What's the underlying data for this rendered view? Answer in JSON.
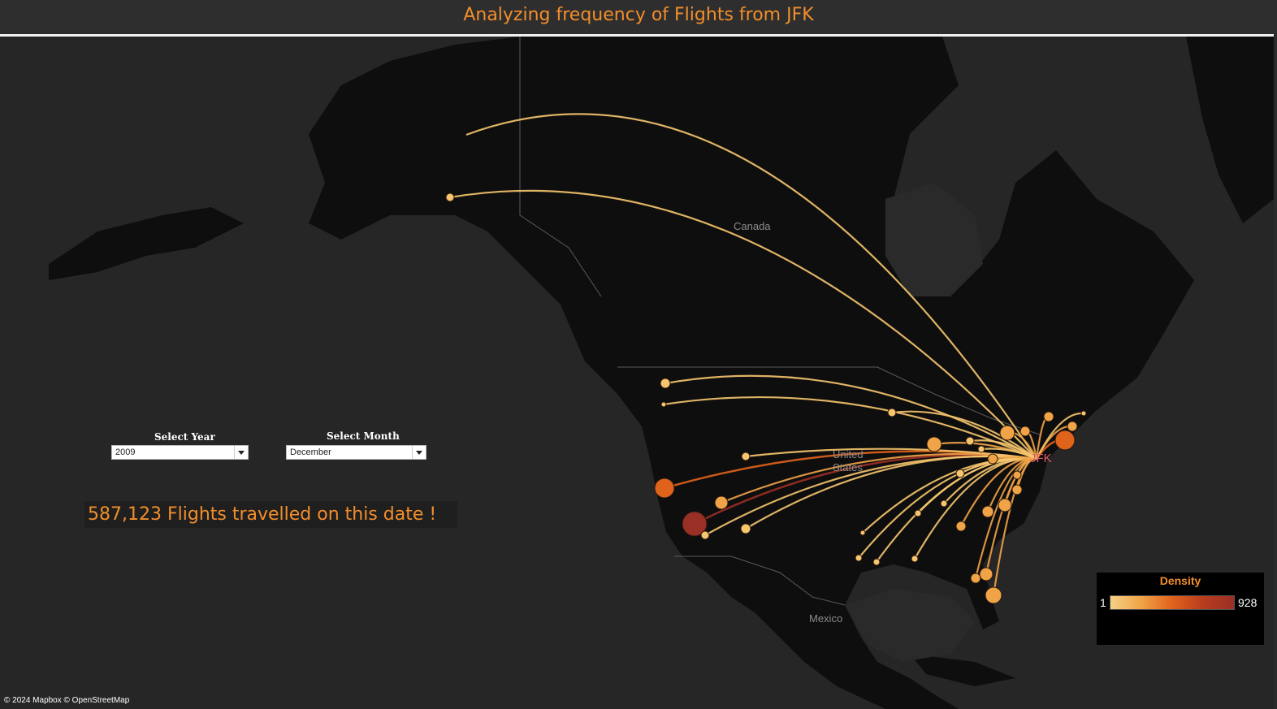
{
  "header": {
    "title": "Analyzing frequency of Flights from JFK"
  },
  "map": {
    "labels": {
      "canada": "Canada",
      "united_states": "United\nStates",
      "mexico": "Mexico"
    },
    "origin": {
      "code": "JFK",
      "color": "#e05a6d"
    },
    "attribution": "© 2024 Mapbox © OpenStreetMap"
  },
  "filters": {
    "year": {
      "title": "Select Year",
      "value": "2009"
    },
    "month": {
      "title": "Select Month",
      "value": "December"
    }
  },
  "summary": {
    "text": "587,123 Flights travelled on this date !"
  },
  "legend": {
    "title": "Density",
    "min": "1",
    "max": "928",
    "colors": [
      "#f6d186",
      "#f0a347",
      "#e0631c",
      "#b83c1e",
      "#9a2f25"
    ]
  },
  "colors": {
    "accent": "#f28e2b",
    "background": "#262626"
  }
}
